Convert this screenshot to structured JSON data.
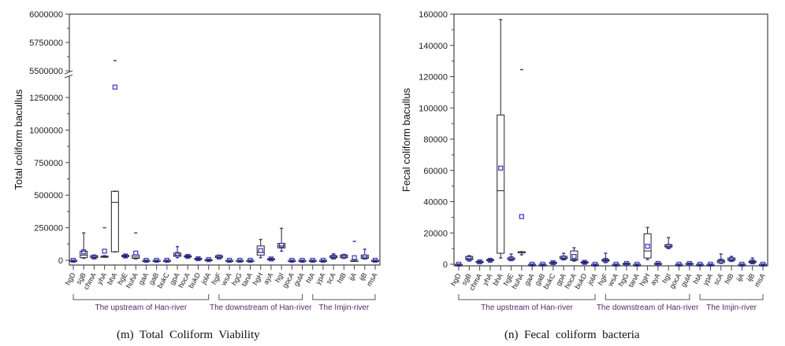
{
  "captions": [
    "(m)  Total  Coliform  Viability",
    "(n)  Fecal  coliform  bacteria"
  ],
  "colors": {
    "box": "#222222",
    "mean_marker": "#3333dd",
    "whisker_cap": "#3333dd",
    "group_label": "#5a2470"
  },
  "chart_data": [
    {
      "type": "box",
      "ylabel": "Total coliform bacullus",
      "axis_break": [
        1375000,
        5500000
      ],
      "ylim": [
        0,
        6000000
      ],
      "yticks": [
        0,
        250000,
        500000,
        750000,
        1000000,
        1250000,
        5500000,
        5750000,
        6000000
      ],
      "ytick_labels": [
        "0",
        "250000",
        "500000",
        "750000",
        "1000000",
        "1250000",
        "5500000",
        "5750000",
        "6000000"
      ],
      "categories": [
        "hgD",
        "sgB",
        "chmA",
        "yhA",
        "bhA",
        "hgE",
        "huhA",
        "gaA",
        "gaB",
        "bukC",
        "gpA",
        "hocA",
        "bukD",
        "jolA",
        "hgF",
        "wsA",
        "hgG",
        "tanA",
        "hgH",
        "ayA",
        "hgI",
        "gocA",
        "gulA",
        "htA",
        "ypA",
        "scA",
        "htB",
        "ijA",
        "ijB",
        "msA"
      ],
      "stats_order": [
        "min",
        "q1",
        "median",
        "q3",
        "max",
        "mean"
      ],
      "stats": [
        [
          0,
          0,
          0,
          0,
          0,
          0
        ],
        [
          15000,
          20000,
          40000,
          70000,
          210000,
          65000
        ],
        [
          15000,
          20000,
          25000,
          35000,
          40000,
          25000
        ],
        [
          25000,
          28000,
          30000,
          32000,
          35000,
          70000
        ],
        [
          65000,
          65000,
          445000,
          530000,
          530000,
          1330000
        ],
        [
          25000,
          28000,
          33000,
          38000,
          45000,
          33000
        ],
        [
          10000,
          15000,
          25000,
          40000,
          40000,
          55000
        ],
        [
          0,
          0,
          0,
          0,
          0,
          0
        ],
        [
          0,
          0,
          0,
          0,
          0,
          0
        ],
        [
          0,
          0,
          0,
          0,
          0,
          0
        ],
        [
          20000,
          30000,
          40000,
          55000,
          105000,
          45000
        ],
        [
          20000,
          25000,
          30000,
          35000,
          40000,
          30000
        ],
        [
          5000,
          8000,
          12000,
          15000,
          18000,
          12000
        ],
        [
          3000,
          4000,
          5000,
          6000,
          7000,
          5000
        ],
        [
          15000,
          20000,
          25000,
          35000,
          38000,
          25000
        ],
        [
          0,
          0,
          0,
          0,
          0,
          0
        ],
        [
          0,
          0,
          0,
          0,
          0,
          0
        ],
        [
          0,
          0,
          0,
          0,
          0,
          0
        ],
        [
          20000,
          40000,
          60000,
          110000,
          160000,
          75000
        ],
        [
          5000,
          8000,
          10000,
          12000,
          15000,
          10000
        ],
        [
          70000,
          95000,
          110000,
          130000,
          245000,
          115000
        ],
        [
          0,
          0,
          0,
          0,
          0,
          0
        ],
        [
          0,
          0,
          0,
          0,
          0,
          0
        ],
        [
          0,
          0,
          0,
          0,
          0,
          0
        ],
        [
          0,
          0,
          0,
          0,
          0,
          0
        ],
        [
          15000,
          20000,
          25000,
          35000,
          50000,
          25000
        ],
        [
          15000,
          20000,
          30000,
          40000,
          45000,
          30000
        ],
        [
          0,
          0,
          0,
          0,
          5000,
          20000
        ],
        [
          10000,
          15000,
          25000,
          40000,
          85000,
          25000
        ],
        [
          0,
          0,
          0,
          0,
          0,
          0
        ]
      ],
      "outliers": {
        "yhA": [
          250000
        ],
        "bhA": [
          5590000
        ],
        "huhA": [
          210000
        ],
        "ijA": [
          145000
        ]
      },
      "groups": [
        {
          "label": "The upstream of Han-river",
          "from": "hgD",
          "to": "jolA"
        },
        {
          "label": "The downstream of Han-river",
          "from": "hgF",
          "to": "gulA"
        },
        {
          "label": "The Imjin-river",
          "from": "htA",
          "to": "msA"
        }
      ]
    },
    {
      "type": "box",
      "ylabel": "Fecal coliform bacullus",
      "ylim": [
        0,
        160000
      ],
      "yticks": [
        0,
        20000,
        40000,
        60000,
        80000,
        100000,
        120000,
        140000,
        160000
      ],
      "ytick_labels": [
        "0",
        "20000",
        "40000",
        "60000",
        "80000",
        "100000",
        "120000",
        "140000",
        "160000"
      ],
      "categories": [
        "hgD",
        "sgB",
        "chmA",
        "yhA",
        "bhA",
        "hgE",
        "huhA",
        "gaA",
        "gaB",
        "bukC",
        "gpA",
        "hocA",
        "bukD",
        "jolA",
        "hgF",
        "wsA",
        "hgG",
        "tanA",
        "hgH",
        "ayA",
        "hgI",
        "gocA",
        "gulA",
        "htA",
        "ypA",
        "scA",
        "htB",
        "ijA",
        "ijB",
        "msA"
      ],
      "stats_order": [
        "min",
        "q1",
        "median",
        "q3",
        "max",
        "mean"
      ],
      "stats": [
        [
          0,
          0,
          0,
          0,
          0,
          0
        ],
        [
          2000,
          3000,
          3500,
          5000,
          5500,
          3500
        ],
        [
          1000,
          1200,
          1500,
          1800,
          2000,
          1500
        ],
        [
          2000,
          2500,
          2800,
          3000,
          3200,
          2500
        ],
        [
          4000,
          7000,
          47000,
          95500,
          156500,
          61500
        ],
        [
          2500,
          3000,
          3200,
          4000,
          6500,
          3500
        ],
        [
          6000,
          7500,
          8000,
          8000,
          8000,
          30500
        ],
        [
          0,
          0,
          0,
          0,
          0,
          0
        ],
        [
          0,
          0,
          0,
          0,
          0,
          0
        ],
        [
          500,
          800,
          1000,
          1200,
          1500,
          1000
        ],
        [
          3000,
          3500,
          4000,
          5000,
          7000,
          4000
        ],
        [
          2000,
          2500,
          3000,
          8500,
          10500,
          5000
        ],
        [
          500,
          1000,
          1200,
          1500,
          2000,
          1200
        ],
        [
          0,
          0,
          0,
          0,
          0,
          0
        ],
        [
          1000,
          2000,
          2500,
          3000,
          7000,
          2500
        ],
        [
          0,
          0,
          0,
          0,
          0,
          0
        ],
        [
          300,
          400,
          500,
          600,
          700,
          500
        ],
        [
          0,
          0,
          0,
          0,
          0,
          0
        ],
        [
          3000,
          4000,
          8500,
          19500,
          23500,
          11500
        ],
        [
          300,
          400,
          500,
          600,
          700,
          500
        ],
        [
          10000,
          11000,
          11500,
          12500,
          17000,
          11500
        ],
        [
          0,
          0,
          0,
          0,
          0,
          0
        ],
        [
          300,
          400,
          500,
          600,
          700,
          500
        ],
        [
          0,
          0,
          0,
          0,
          0,
          0
        ],
        [
          0,
          0,
          0,
          0,
          0,
          0
        ],
        [
          500,
          1000,
          2000,
          2500,
          6500,
          2000
        ],
        [
          2000,
          2500,
          3000,
          4000,
          5000,
          3000
        ],
        [
          0,
          0,
          0,
          0,
          0,
          0
        ],
        [
          500,
          1000,
          1500,
          2000,
          4000,
          1500
        ],
        [
          0,
          0,
          0,
          0,
          0,
          0
        ]
      ],
      "outliers": {
        "huhA": [
          124500
        ]
      },
      "groups": [
        {
          "label": "The upstream of Han-river",
          "from": "hgD",
          "to": "jolA"
        },
        {
          "label": "The downstream of Han-river",
          "from": "hgF",
          "to": "gulA"
        },
        {
          "label": "The Imjin-river",
          "from": "htA",
          "to": "msA"
        }
      ]
    }
  ]
}
